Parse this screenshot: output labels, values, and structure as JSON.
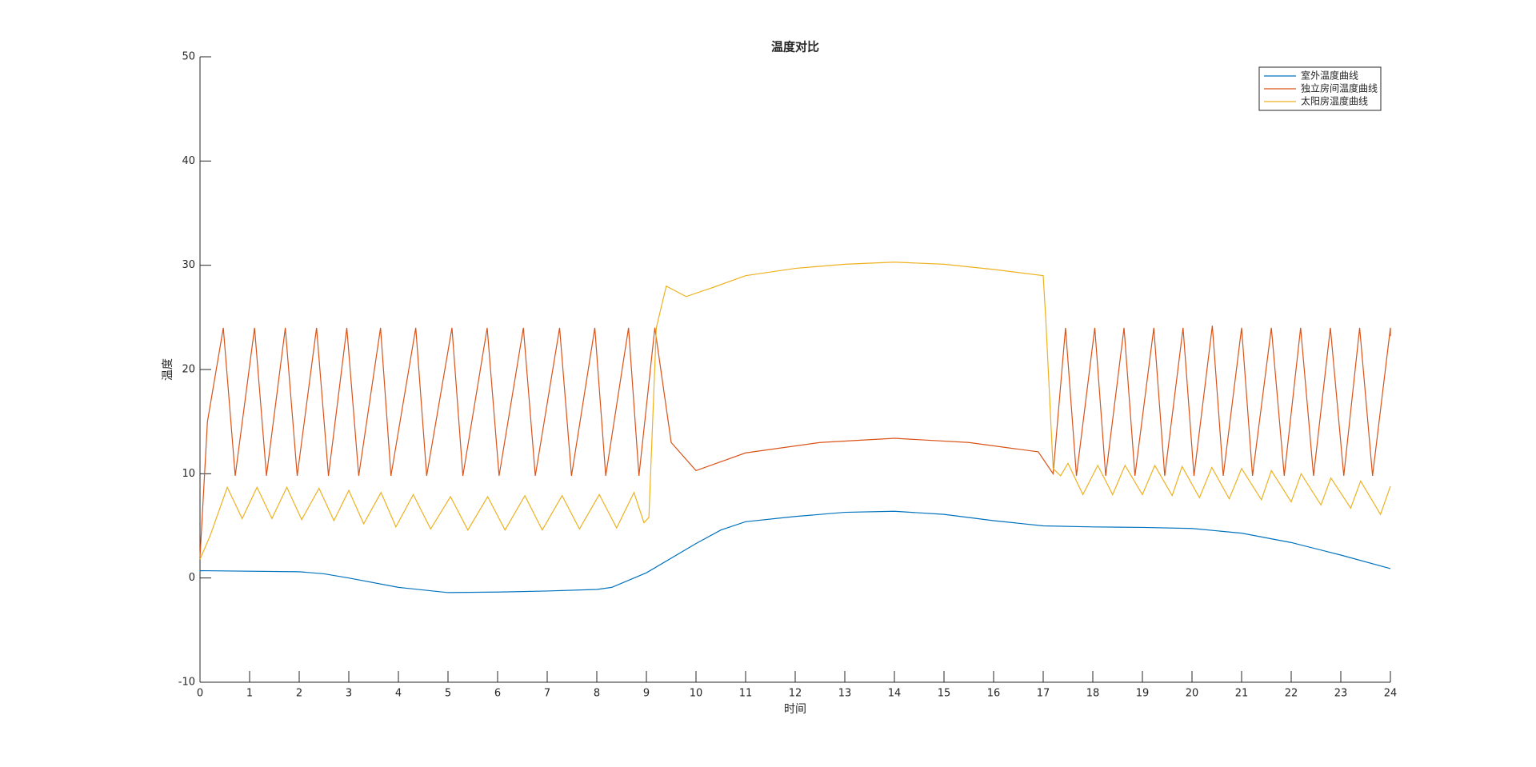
{
  "chart_data": {
    "type": "line",
    "title": "温度对比",
    "x_label": "时间",
    "y_label": "温度",
    "xlim": [
      0,
      24
    ],
    "ylim": [
      -10,
      50
    ],
    "xticks": [
      0,
      1,
      2,
      3,
      4,
      5,
      6,
      7,
      8,
      9,
      10,
      11,
      12,
      13,
      14,
      15,
      16,
      17,
      18,
      19,
      20,
      21,
      22,
      23,
      24
    ],
    "yticks": [
      -10,
      0,
      10,
      20,
      30,
      40,
      50
    ],
    "grid": false,
    "legend": "upper-right",
    "series": [
      {
        "name": "室外温度曲线",
        "color": "#0072bd",
        "x": [
          0,
          2,
          2.5,
          3,
          4,
          5,
          6,
          7,
          8,
          8.3,
          9,
          10,
          10.5,
          11,
          12,
          13,
          14,
          15,
          16,
          17,
          18,
          19,
          20,
          21,
          22,
          23,
          24
        ],
        "values": [
          0.7,
          0.6,
          0.4,
          0,
          -0.9,
          -1.4,
          -1.35,
          -1.25,
          -1.1,
          -0.9,
          0.5,
          3.3,
          4.6,
          5.4,
          5.9,
          6.3,
          6.4,
          6.1,
          5.5,
          5.0,
          4.9,
          4.85,
          4.75,
          4.3,
          3.4,
          2.2,
          0.9
        ]
      },
      {
        "name": "独立房间温度曲线",
        "color": "#d95319",
        "x": [
          0,
          0.15,
          0.47,
          0.71,
          1.1,
          1.34,
          1.72,
          1.96,
          2.35,
          2.59,
          2.96,
          3.2,
          3.64,
          3.85,
          4.35,
          4.57,
          5.08,
          5.3,
          5.79,
          6.03,
          6.52,
          6.76,
          7.25,
          7.49,
          7.96,
          8.18,
          8.64,
          8.85,
          9.17,
          9.5,
          10,
          11,
          12.5,
          14,
          15.5,
          16.9,
          17.2,
          17.45,
          17.67,
          18.04,
          18.26,
          18.63,
          18.85,
          19.23,
          19.45,
          19.82,
          20.04,
          20.41,
          20.63,
          21.0,
          21.22,
          21.6,
          21.86,
          22.19,
          22.45,
          22.79,
          23.06,
          23.38,
          23.64,
          24,
          24
        ],
        "values": [
          2,
          15,
          24,
          9.8,
          24,
          9.8,
          24,
          9.8,
          24,
          9.8,
          24,
          9.8,
          24,
          9.8,
          24,
          9.8,
          24,
          9.8,
          24,
          9.8,
          24,
          9.8,
          24,
          9.8,
          24,
          9.8,
          24,
          9.8,
          24,
          13,
          10.3,
          12,
          13,
          13.4,
          13,
          12.1,
          10,
          24,
          9.8,
          24,
          9.8,
          24,
          9.8,
          24,
          9.8,
          24,
          9.8,
          24.2,
          9.8,
          24,
          9.8,
          24,
          9.8,
          24,
          9.8,
          24,
          9.8,
          24,
          9.8,
          24,
          23.2
        ]
      },
      {
        "name": "太阳房温度曲线",
        "color": "#edb120",
        "x": [
          0,
          0.2,
          0.55,
          0.85,
          1.15,
          1.45,
          1.75,
          2.05,
          2.4,
          2.7,
          3.0,
          3.3,
          3.65,
          3.95,
          4.3,
          4.65,
          5.05,
          5.4,
          5.8,
          6.15,
          6.55,
          6.9,
          7.3,
          7.65,
          8.05,
          8.4,
          8.75,
          8.95,
          9.05,
          9.2,
          9.4,
          9.8,
          10.3,
          11,
          12,
          13,
          14,
          15,
          16,
          17,
          17.05,
          17.2,
          17.35,
          17.5,
          17.8,
          18.1,
          18.4,
          18.65,
          19.0,
          19.25,
          19.6,
          19.8,
          20.15,
          20.4,
          20.75,
          21.0,
          21.4,
          21.6,
          22.0,
          22.2,
          22.6,
          22.8,
          23.2,
          23.4,
          23.8,
          24
        ],
        "values": [
          1.8,
          4,
          8.7,
          5.7,
          8.7,
          5.7,
          8.7,
          5.6,
          8.6,
          5.5,
          8.4,
          5.2,
          8.2,
          4.9,
          8,
          4.7,
          7.8,
          4.6,
          7.8,
          4.6,
          7.9,
          4.6,
          7.9,
          4.7,
          8.0,
          4.8,
          8.2,
          5.3,
          5.8,
          24,
          28,
          27,
          27.8,
          29,
          29.7,
          30.1,
          30.3,
          30.1,
          29.6,
          29.0,
          25,
          10.5,
          9.8,
          11,
          8,
          10.8,
          8,
          10.8,
          8,
          10.8,
          7.9,
          10.7,
          7.7,
          10.6,
          7.6,
          10.5,
          7.5,
          10.3,
          7.3,
          10.0,
          7.0,
          9.6,
          6.7,
          9.3,
          6.1,
          8.8
        ]
      }
    ]
  }
}
